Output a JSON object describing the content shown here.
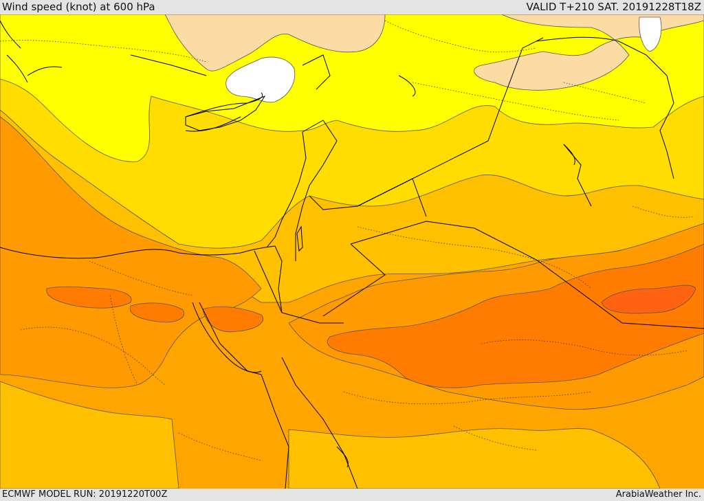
{
  "header": {
    "title": "Wind speed (knot) at 600 hPa",
    "valid": "VALID T+210 SAT. 20191228T18Z"
  },
  "footer": {
    "model_run": "ECMWF MODEL RUN: 20191220T00Z",
    "credit": "ArabiaWeather Inc."
  },
  "map": {
    "region": "Eastern Mediterranean / Middle East",
    "field": "wind speed",
    "level": "600 hPa",
    "colors": {
      "white": "#ffffff",
      "peach": "#fcdba4",
      "light_yellow": "#ffff00",
      "yellow": "#ffdd00",
      "gold": "#ffc000",
      "light_orange": "#ffa500",
      "orange": "#ff8c00",
      "dark_orange": "#ff7200",
      "red_orange": "#ff5f0a",
      "contour": "#555555",
      "border": "#000000"
    }
  }
}
